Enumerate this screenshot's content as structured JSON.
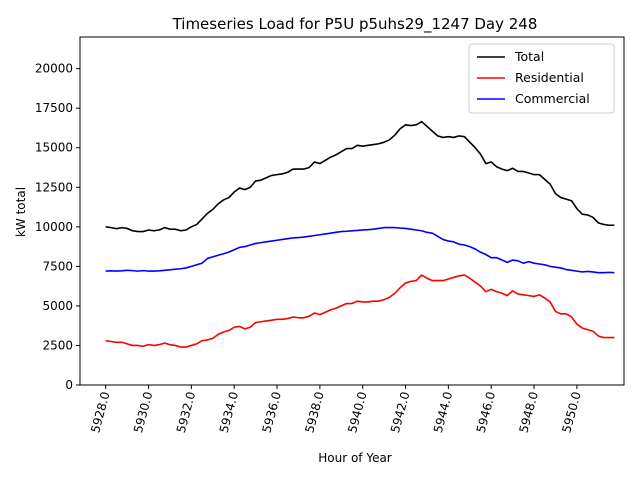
{
  "chart_data": {
    "type": "line",
    "title": "Timeseries Load for P5U p5uhs29_1247  Day 248",
    "xlabel": "Hour of Year",
    "ylabel": "kW total",
    "xlim": [
      5926.8,
      5952.2
    ],
    "ylim": [
      0,
      22000
    ],
    "x_ticks": [
      5928,
      5930,
      5932,
      5934,
      5936,
      5938,
      5940,
      5942,
      5944,
      5946,
      5948,
      5950
    ],
    "x_tick_labels": [
      "5928.0",
      "5930.0",
      "5932.0",
      "5934.0",
      "5936.0",
      "5938.0",
      "5940.0",
      "5942.0",
      "5944.0",
      "5946.0",
      "5948.0",
      "5950.0"
    ],
    "y_ticks": [
      0,
      2500,
      5000,
      7500,
      10000,
      12500,
      15000,
      17500,
      20000
    ],
    "y_tick_labels": [
      "0",
      "2500",
      "5000",
      "7500",
      "10000",
      "12500",
      "15000",
      "17500",
      "20000"
    ],
    "legend_position": "top-right",
    "x_start": 5928,
    "x_step": 0.25,
    "series": [
      {
        "name": "Total",
        "color": "#000000",
        "values": [
          10000,
          9950,
          9880,
          9950,
          9900,
          9750,
          9700,
          9700,
          9800,
          9750,
          9800,
          9950,
          9850,
          9850,
          9750,
          9800,
          10000,
          10150,
          10500,
          10850,
          11100,
          11450,
          11700,
          11850,
          12200,
          12450,
          12350,
          12500,
          12900,
          12950,
          13100,
          13250,
          13300,
          13350,
          13450,
          13650,
          13650,
          13650,
          13750,
          14100,
          14000,
          14200,
          14400,
          14550,
          14750,
          14950,
          14950,
          15150,
          15100,
          15150,
          15200,
          15250,
          15350,
          15500,
          15800,
          16200,
          16450,
          16400,
          16450,
          16650,
          16350,
          16050,
          15750,
          15650,
          15700,
          15650,
          15750,
          15700,
          15350,
          15000,
          14600,
          14000,
          14100,
          13800,
          13650,
          13550,
          13700,
          13500,
          13500,
          13400,
          13300,
          13300,
          13000,
          12700,
          12100,
          11850,
          11750,
          11650,
          11150,
          10800,
          10750,
          10600,
          10250,
          10150,
          10100,
          10100
        ]
      },
      {
        "name": "Residential",
        "color": "#ff0000",
        "values": [
          2800,
          2750,
          2700,
          2700,
          2600,
          2500,
          2500,
          2450,
          2550,
          2500,
          2550,
          2650,
          2550,
          2500,
          2400,
          2400,
          2500,
          2600,
          2800,
          2850,
          2950,
          3200,
          3350,
          3450,
          3650,
          3700,
          3550,
          3650,
          3950,
          4000,
          4050,
          4100,
          4150,
          4150,
          4200,
          4300,
          4250,
          4250,
          4350,
          4550,
          4450,
          4600,
          4750,
          4850,
          5000,
          5150,
          5150,
          5300,
          5250,
          5250,
          5300,
          5300,
          5400,
          5550,
          5800,
          6150,
          6450,
          6550,
          6600,
          6950,
          6750,
          6600,
          6600,
          6600,
          6700,
          6800,
          6900,
          6950,
          6750,
          6500,
          6250,
          5900,
          6050,
          5900,
          5800,
          5650,
          5950,
          5750,
          5700,
          5650,
          5600,
          5700,
          5500,
          5250,
          4650,
          4500,
          4500,
          4300,
          3850,
          3600,
          3500,
          3400,
          3100,
          3000,
          3000,
          3000
        ]
      },
      {
        "name": "Commercial",
        "color": "#0000ff",
        "values": [
          7200,
          7220,
          7200,
          7220,
          7250,
          7230,
          7200,
          7230,
          7200,
          7200,
          7220,
          7250,
          7280,
          7320,
          7350,
          7400,
          7500,
          7600,
          7700,
          8000,
          8100,
          8200,
          8300,
          8400,
          8550,
          8700,
          8750,
          8850,
          8950,
          9000,
          9050,
          9100,
          9150,
          9200,
          9250,
          9300,
          9320,
          9350,
          9400,
          9450,
          9500,
          9550,
          9600,
          9650,
          9700,
          9720,
          9750,
          9770,
          9800,
          9820,
          9850,
          9900,
          9950,
          9950,
          9950,
          9920,
          9900,
          9850,
          9800,
          9750,
          9650,
          9600,
          9400,
          9200,
          9100,
          9050,
          8900,
          8850,
          8750,
          8600,
          8400,
          8250,
          8050,
          8050,
          7900,
          7750,
          7900,
          7850,
          7700,
          7800,
          7700,
          7650,
          7600,
          7500,
          7450,
          7400,
          7300,
          7250,
          7200,
          7150,
          7180,
          7150,
          7100,
          7100,
          7120,
          7100
        ]
      }
    ]
  }
}
